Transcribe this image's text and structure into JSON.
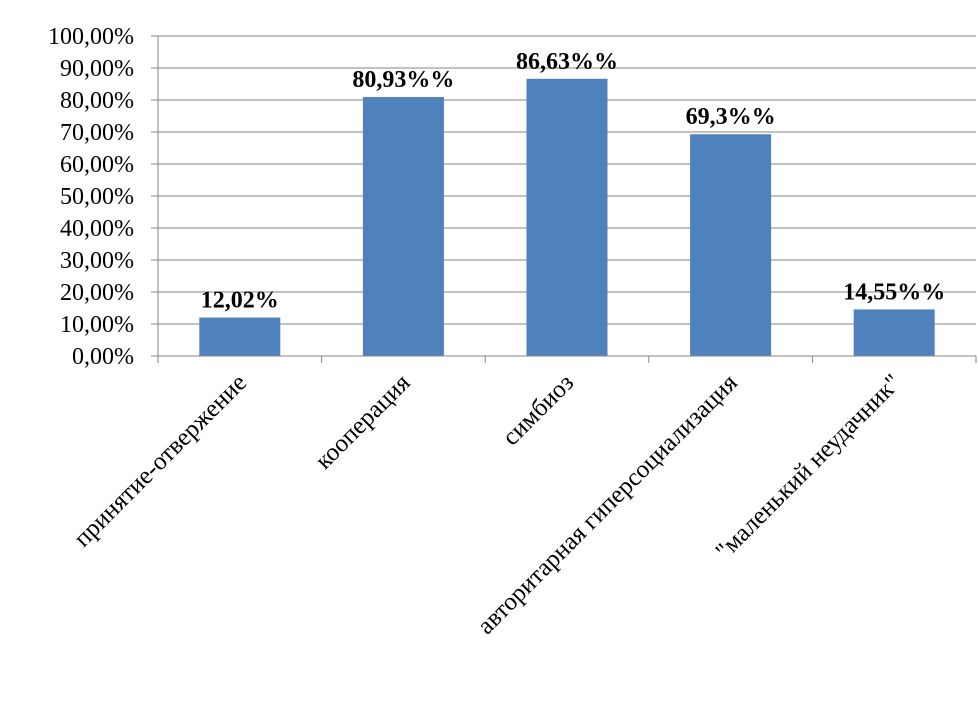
{
  "chart_data": {
    "type": "bar",
    "categories": [
      "принятие-отвержение",
      "кооперация",
      "симбиоз",
      "авторитарная гиперсоциализация",
      "\"маленький неудачник\""
    ],
    "values": [
      12.02,
      80.93,
      86.63,
      69.3,
      14.55
    ],
    "data_labels": [
      "12,02%",
      "80,93%%",
      "86,63%%",
      "69,3%%",
      "14,55%%"
    ],
    "y_ticks": [
      "0,00%",
      "10,00%",
      "20,00%",
      "30,00%",
      "40,00%",
      "50,00%",
      "60,00%",
      "70,00%",
      "80,00%",
      "90,00%",
      "100,00%"
    ],
    "ylim": [
      0,
      100
    ],
    "grid": true,
    "legend": "none",
    "bar_color": "#4f81bd",
    "grid_color": "#868686"
  }
}
